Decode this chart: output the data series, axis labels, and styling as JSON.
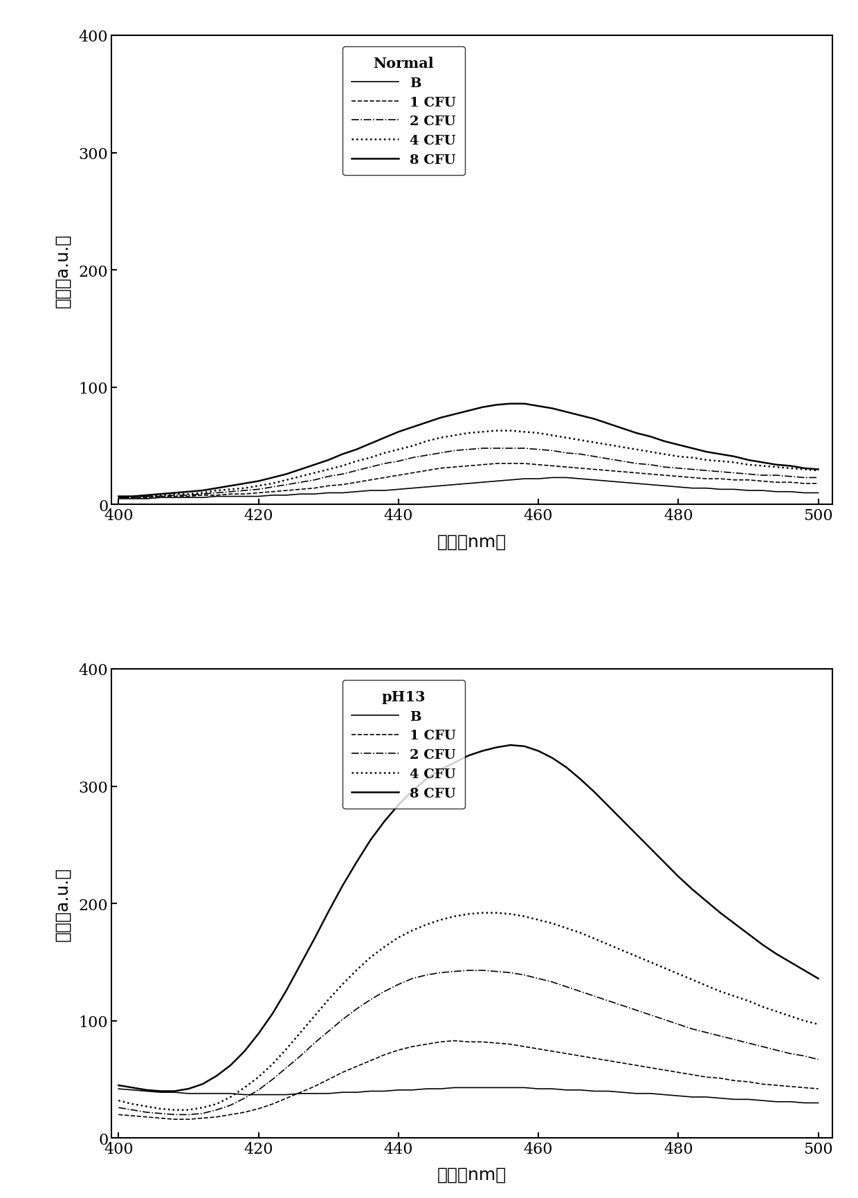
{
  "subplot1": {
    "title": "Normal",
    "xlabel": "波长（nm）",
    "ylabel": "强度（a.u.）",
    "xlim": [
      399,
      502
    ],
    "ylim": [
      0,
      400
    ],
    "xticks": [
      400,
      420,
      440,
      460,
      480,
      500
    ],
    "yticks": [
      0,
      100,
      200,
      300,
      400
    ],
    "series": [
      {
        "label": "B",
        "linestyle": "solid",
        "linewidth": 1.2,
        "color": "#000000",
        "x": [
          400,
          402,
          404,
          406,
          408,
          410,
          412,
          414,
          416,
          418,
          420,
          422,
          424,
          426,
          428,
          430,
          432,
          434,
          436,
          438,
          440,
          442,
          444,
          446,
          448,
          450,
          452,
          454,
          456,
          458,
          460,
          462,
          464,
          466,
          468,
          470,
          472,
          474,
          476,
          478,
          480,
          482,
          484,
          486,
          488,
          490,
          492,
          494,
          496,
          498,
          500
        ],
        "y": [
          5,
          5,
          5,
          6,
          6,
          6,
          6,
          7,
          7,
          7,
          7,
          8,
          8,
          9,
          9,
          10,
          10,
          11,
          12,
          12,
          13,
          14,
          15,
          16,
          17,
          18,
          19,
          20,
          21,
          22,
          22,
          23,
          23,
          22,
          21,
          20,
          19,
          18,
          17,
          16,
          15,
          14,
          14,
          13,
          13,
          12,
          12,
          11,
          11,
          10,
          10
        ]
      },
      {
        "label": "1 CFU",
        "linestyle": "dashed",
        "linewidth": 1.2,
        "color": "#000000",
        "x": [
          400,
          402,
          404,
          406,
          408,
          410,
          412,
          414,
          416,
          418,
          420,
          422,
          424,
          426,
          428,
          430,
          432,
          434,
          436,
          438,
          440,
          442,
          444,
          446,
          448,
          450,
          452,
          454,
          456,
          458,
          460,
          462,
          464,
          466,
          468,
          470,
          472,
          474,
          476,
          478,
          480,
          482,
          484,
          486,
          488,
          490,
          492,
          494,
          496,
          498,
          500
        ],
        "y": [
          6,
          6,
          6,
          7,
          7,
          7,
          8,
          8,
          9,
          9,
          10,
          11,
          12,
          13,
          14,
          16,
          17,
          19,
          21,
          23,
          25,
          27,
          29,
          31,
          32,
          33,
          34,
          35,
          35,
          35,
          34,
          33,
          32,
          31,
          30,
          29,
          28,
          27,
          26,
          25,
          24,
          23,
          22,
          22,
          21,
          21,
          20,
          19,
          19,
          18,
          18
        ]
      },
      {
        "label": "2 CFU",
        "linestyle": "dashdot",
        "linewidth": 1.2,
        "color": "#000000",
        "x": [
          400,
          402,
          404,
          406,
          408,
          410,
          412,
          414,
          416,
          418,
          420,
          422,
          424,
          426,
          428,
          430,
          432,
          434,
          436,
          438,
          440,
          442,
          444,
          446,
          448,
          450,
          452,
          454,
          456,
          458,
          460,
          462,
          464,
          466,
          468,
          470,
          472,
          474,
          476,
          478,
          480,
          482,
          484,
          486,
          488,
          490,
          492,
          494,
          496,
          498,
          500
        ],
        "y": [
          6,
          6,
          7,
          7,
          8,
          8,
          9,
          10,
          11,
          12,
          13,
          15,
          17,
          19,
          21,
          24,
          26,
          29,
          32,
          35,
          37,
          40,
          42,
          44,
          46,
          47,
          48,
          48,
          48,
          48,
          47,
          46,
          44,
          43,
          41,
          39,
          37,
          35,
          34,
          32,
          31,
          30,
          29,
          28,
          27,
          26,
          25,
          25,
          24,
          23,
          23
        ]
      },
      {
        "label": "4 CFU",
        "linestyle": "dotted",
        "linewidth": 1.8,
        "color": "#000000",
        "x": [
          400,
          402,
          404,
          406,
          408,
          410,
          412,
          414,
          416,
          418,
          420,
          422,
          424,
          426,
          428,
          430,
          432,
          434,
          436,
          438,
          440,
          442,
          444,
          446,
          448,
          450,
          452,
          454,
          456,
          458,
          460,
          462,
          464,
          466,
          468,
          470,
          472,
          474,
          476,
          478,
          480,
          482,
          484,
          486,
          488,
          490,
          492,
          494,
          496,
          498,
          500
        ],
        "y": [
          6,
          7,
          7,
          8,
          9,
          9,
          10,
          12,
          13,
          14,
          16,
          18,
          21,
          24,
          27,
          30,
          33,
          37,
          40,
          44,
          47,
          50,
          54,
          57,
          59,
          61,
          62,
          63,
          63,
          62,
          61,
          59,
          57,
          55,
          53,
          51,
          49,
          47,
          45,
          43,
          41,
          40,
          38,
          37,
          36,
          34,
          33,
          32,
          31,
          30,
          29
        ]
      },
      {
        "label": "8 CFU",
        "linestyle": "solid",
        "linewidth": 1.8,
        "color": "#000000",
        "x": [
          400,
          402,
          404,
          406,
          408,
          410,
          412,
          414,
          416,
          418,
          420,
          422,
          424,
          426,
          428,
          430,
          432,
          434,
          436,
          438,
          440,
          442,
          444,
          446,
          448,
          450,
          452,
          454,
          456,
          458,
          460,
          462,
          464,
          466,
          468,
          470,
          472,
          474,
          476,
          478,
          480,
          482,
          484,
          486,
          488,
          490,
          492,
          494,
          496,
          498,
          500
        ],
        "y": [
          7,
          7,
          8,
          9,
          10,
          11,
          12,
          14,
          16,
          18,
          20,
          23,
          26,
          30,
          34,
          38,
          43,
          47,
          52,
          57,
          62,
          66,
          70,
          74,
          77,
          80,
          83,
          85,
          86,
          86,
          84,
          82,
          79,
          76,
          73,
          69,
          65,
          61,
          58,
          54,
          51,
          48,
          45,
          43,
          41,
          38,
          36,
          34,
          33,
          31,
          30
        ]
      }
    ]
  },
  "subplot2": {
    "title": "pH13",
    "xlabel": "波长（nm）",
    "ylabel": "强度（a.u.）",
    "xlim": [
      399,
      502
    ],
    "ylim": [
      0,
      400
    ],
    "xticks": [
      400,
      420,
      440,
      460,
      480,
      500
    ],
    "yticks": [
      0,
      100,
      200,
      300,
      400
    ],
    "series": [
      {
        "label": "B",
        "linestyle": "solid",
        "linewidth": 1.2,
        "color": "#000000",
        "x": [
          400,
          402,
          404,
          406,
          408,
          410,
          412,
          414,
          416,
          418,
          420,
          422,
          424,
          426,
          428,
          430,
          432,
          434,
          436,
          438,
          440,
          442,
          444,
          446,
          448,
          450,
          452,
          454,
          456,
          458,
          460,
          462,
          464,
          466,
          468,
          470,
          472,
          474,
          476,
          478,
          480,
          482,
          484,
          486,
          488,
          490,
          492,
          494,
          496,
          498,
          500
        ],
        "y": [
          42,
          41,
          40,
          39,
          39,
          38,
          38,
          38,
          38,
          37,
          37,
          37,
          37,
          38,
          38,
          38,
          39,
          39,
          40,
          40,
          41,
          41,
          42,
          42,
          43,
          43,
          43,
          43,
          43,
          43,
          42,
          42,
          41,
          41,
          40,
          40,
          39,
          38,
          38,
          37,
          36,
          35,
          35,
          34,
          33,
          33,
          32,
          31,
          31,
          30,
          30
        ]
      },
      {
        "label": "1 CFU",
        "linestyle": "dashed",
        "linewidth": 1.2,
        "color": "#000000",
        "x": [
          400,
          402,
          404,
          406,
          408,
          410,
          412,
          414,
          416,
          418,
          420,
          422,
          424,
          426,
          428,
          430,
          432,
          434,
          436,
          438,
          440,
          442,
          444,
          446,
          448,
          450,
          452,
          454,
          456,
          458,
          460,
          462,
          464,
          466,
          468,
          470,
          472,
          474,
          476,
          478,
          480,
          482,
          484,
          486,
          488,
          490,
          492,
          494,
          496,
          498,
          500
        ],
        "y": [
          20,
          19,
          18,
          17,
          16,
          16,
          17,
          18,
          20,
          22,
          25,
          29,
          34,
          39,
          44,
          50,
          56,
          61,
          66,
          71,
          75,
          78,
          80,
          82,
          83,
          82,
          82,
          81,
          80,
          78,
          76,
          74,
          72,
          70,
          68,
          66,
          64,
          62,
          60,
          58,
          56,
          54,
          52,
          51,
          49,
          48,
          46,
          45,
          44,
          43,
          42
        ]
      },
      {
        "label": "2 CFU",
        "linestyle": "dashdot",
        "linewidth": 1.2,
        "color": "#000000",
        "x": [
          400,
          402,
          404,
          406,
          408,
          410,
          412,
          414,
          416,
          418,
          420,
          422,
          424,
          426,
          428,
          430,
          432,
          434,
          436,
          438,
          440,
          442,
          444,
          446,
          448,
          450,
          452,
          454,
          456,
          458,
          460,
          462,
          464,
          466,
          468,
          470,
          472,
          474,
          476,
          478,
          480,
          482,
          484,
          486,
          488,
          490,
          492,
          494,
          496,
          498,
          500
        ],
        "y": [
          26,
          24,
          22,
          21,
          20,
          20,
          21,
          24,
          28,
          34,
          41,
          50,
          60,
          70,
          81,
          91,
          101,
          110,
          118,
          125,
          131,
          136,
          139,
          141,
          142,
          143,
          143,
          142,
          141,
          139,
          136,
          133,
          129,
          125,
          121,
          117,
          113,
          109,
          105,
          101,
          97,
          93,
          90,
          87,
          84,
          81,
          78,
          75,
          72,
          70,
          67
        ]
      },
      {
        "label": "4 CFU",
        "linestyle": "dotted",
        "linewidth": 1.8,
        "color": "#000000",
        "x": [
          400,
          402,
          404,
          406,
          408,
          410,
          412,
          414,
          416,
          418,
          420,
          422,
          424,
          426,
          428,
          430,
          432,
          434,
          436,
          438,
          440,
          442,
          444,
          446,
          448,
          450,
          452,
          454,
          456,
          458,
          460,
          462,
          464,
          466,
          468,
          470,
          472,
          474,
          476,
          478,
          480,
          482,
          484,
          486,
          488,
          490,
          492,
          494,
          496,
          498,
          500
        ],
        "y": [
          32,
          29,
          27,
          25,
          24,
          24,
          26,
          29,
          35,
          43,
          52,
          63,
          76,
          90,
          104,
          118,
          131,
          143,
          154,
          163,
          171,
          177,
          182,
          186,
          189,
          191,
          192,
          192,
          191,
          189,
          186,
          183,
          179,
          175,
          170,
          165,
          160,
          155,
          150,
          145,
          140,
          135,
          130,
          125,
          121,
          117,
          112,
          108,
          104,
          100,
          97
        ]
      },
      {
        "label": "8 CFU",
        "linestyle": "solid",
        "linewidth": 1.8,
        "color": "#000000",
        "x": [
          400,
          402,
          404,
          406,
          408,
          410,
          412,
          414,
          416,
          418,
          420,
          422,
          424,
          426,
          428,
          430,
          432,
          434,
          436,
          438,
          440,
          442,
          444,
          446,
          448,
          450,
          452,
          454,
          456,
          458,
          460,
          462,
          464,
          466,
          468,
          470,
          472,
          474,
          476,
          478,
          480,
          482,
          484,
          486,
          488,
          490,
          492,
          494,
          496,
          498,
          500
        ],
        "y": [
          45,
          43,
          41,
          40,
          40,
          42,
          46,
          53,
          62,
          74,
          89,
          106,
          126,
          148,
          170,
          193,
          215,
          235,
          254,
          270,
          284,
          296,
          306,
          314,
          320,
          326,
          330,
          333,
          335,
          334,
          330,
          324,
          316,
          306,
          295,
          283,
          271,
          259,
          247,
          235,
          223,
          212,
          202,
          192,
          183,
          174,
          165,
          157,
          150,
          143,
          136
        ]
      }
    ]
  },
  "figure_bg": "#ffffff",
  "font_color": "#000000",
  "tick_fontsize": 16,
  "label_fontsize": 18,
  "legend_fontsize": 14,
  "legend_title_fontsize": 15
}
